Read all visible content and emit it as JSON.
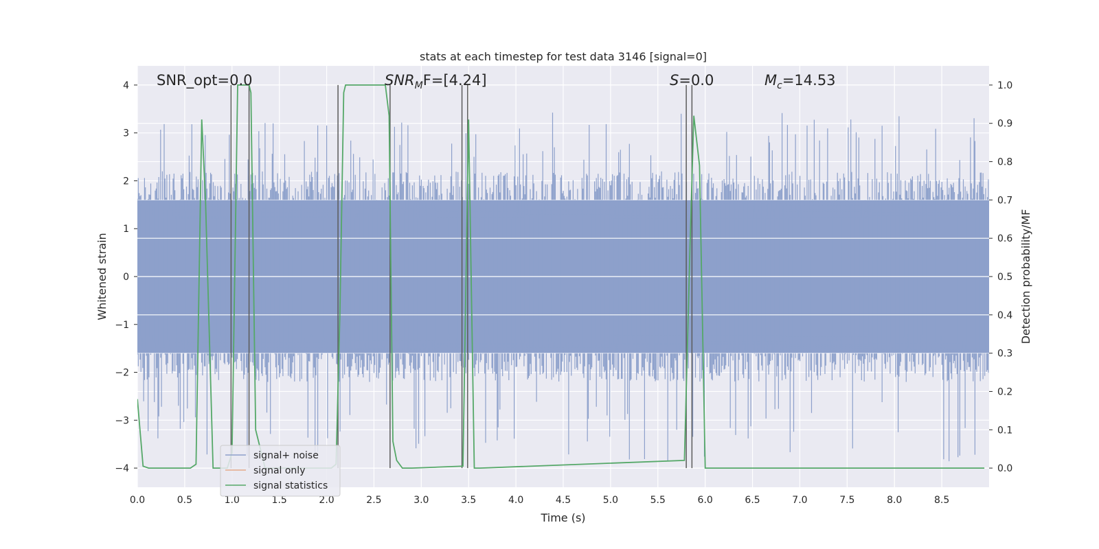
{
  "chart_data": {
    "type": "line",
    "title": "stats at each timestep for test data 3146 [signal=0]",
    "xlabel": "Time (s)",
    "ylabel_left": "Whitened strain",
    "ylabel_right": "Detection probability/MF",
    "xlim": [
      0.0,
      9.0
    ],
    "ylim_left": [
      -4.4,
      4.4
    ],
    "ylim_right": [
      -0.05,
      1.05
    ],
    "x_ticks": [
      0.0,
      0.5,
      1.0,
      1.5,
      2.0,
      2.5,
      3.0,
      3.5,
      4.0,
      4.5,
      5.0,
      5.5,
      6.0,
      6.5,
      7.0,
      7.5,
      8.0,
      8.5
    ],
    "x_tick_labels": [
      "0.0",
      "0.5",
      "1.0",
      "1.5",
      "2.0",
      "2.5",
      "3.0",
      "3.5",
      "4.0",
      "4.5",
      "5.0",
      "5.5",
      "6.0",
      "6.5",
      "7.0",
      "7.5",
      "8.0",
      "8.5"
    ],
    "y_left_ticks": [
      -4,
      -3,
      -2,
      -1,
      0,
      1,
      2,
      3,
      4
    ],
    "y_left_tick_labels": [
      "−4",
      "−3",
      "−2",
      "−1",
      "0",
      "1",
      "2",
      "3",
      "4"
    ],
    "y_right_ticks": [
      0.0,
      0.1,
      0.2,
      0.3,
      0.4,
      0.5,
      0.6,
      0.7,
      0.8,
      0.9,
      1.0
    ],
    "y_right_tick_labels": [
      "0.0",
      "0.1",
      "0.2",
      "0.3",
      "0.4",
      "0.5",
      "0.6",
      "0.7",
      "0.8",
      "0.9",
      "1.0"
    ],
    "grid": true,
    "legend_position": "lower-left",
    "annotations": {
      "snr_opt": "SNR_opt=0.0",
      "snr_mf_prefix": "SNR",
      "snr_mf_sub": "M",
      "snr_mf_suffix": "F=[4.24]",
      "s_prefix": "S",
      "s_suffix": "=0.0",
      "mc_prefix": "M",
      "mc_sub": "c",
      "mc_suffix": "=14.53"
    },
    "series": [
      {
        "name": "signal+ noise",
        "color": "#8da0cb",
        "style": "dense noise, amplitude within about ±1.6 with spikes to about ±3.5"
      },
      {
        "name": "signal only",
        "color": "#e5a98a",
        "values": []
      },
      {
        "name": "signal statistics",
        "color": "#55a868",
        "x": [
          0.0,
          0.06,
          0.12,
          0.56,
          0.62,
          0.68,
          0.72,
          0.8,
          0.95,
          1.0,
          1.06,
          1.18,
          1.2,
          1.25,
          1.35,
          2.05,
          2.1,
          2.14,
          2.18,
          2.2,
          2.62,
          2.66,
          2.7,
          2.74,
          2.8,
          2.9,
          3.44,
          3.5,
          3.56,
          3.62,
          5.78,
          5.84,
          5.88,
          5.94,
          6.0,
          6.1,
          8.95
        ],
        "y": [
          0.18,
          0.005,
          0.0,
          0.0,
          0.01,
          0.91,
          0.7,
          0.0,
          0.0,
          0.04,
          1.0,
          1.0,
          0.98,
          0.1,
          0.0,
          0.0,
          0.01,
          0.4,
          0.98,
          1.0,
          1.0,
          0.92,
          0.07,
          0.02,
          0.0,
          0.0,
          0.005,
          0.91,
          0.0,
          0.0,
          0.02,
          0.58,
          0.92,
          0.79,
          0.0,
          0.0,
          0.0
        ]
      }
    ],
    "vertical_markers_x": [
      0.99,
      1.18,
      2.12,
      2.67,
      3.43,
      3.49,
      5.8,
      5.86
    ]
  },
  "legend": {
    "items": [
      {
        "label": "signal+ noise",
        "color": "#8da0cb"
      },
      {
        "label": "signal only",
        "color": "#e5a98a"
      },
      {
        "label": "signal statistics",
        "color": "#55a868"
      }
    ]
  },
  "colors": {
    "axes_background": "#eaeaf2",
    "grid": "#ffffff",
    "marker_lines": "#5a5a5a",
    "text": "#262626"
  }
}
